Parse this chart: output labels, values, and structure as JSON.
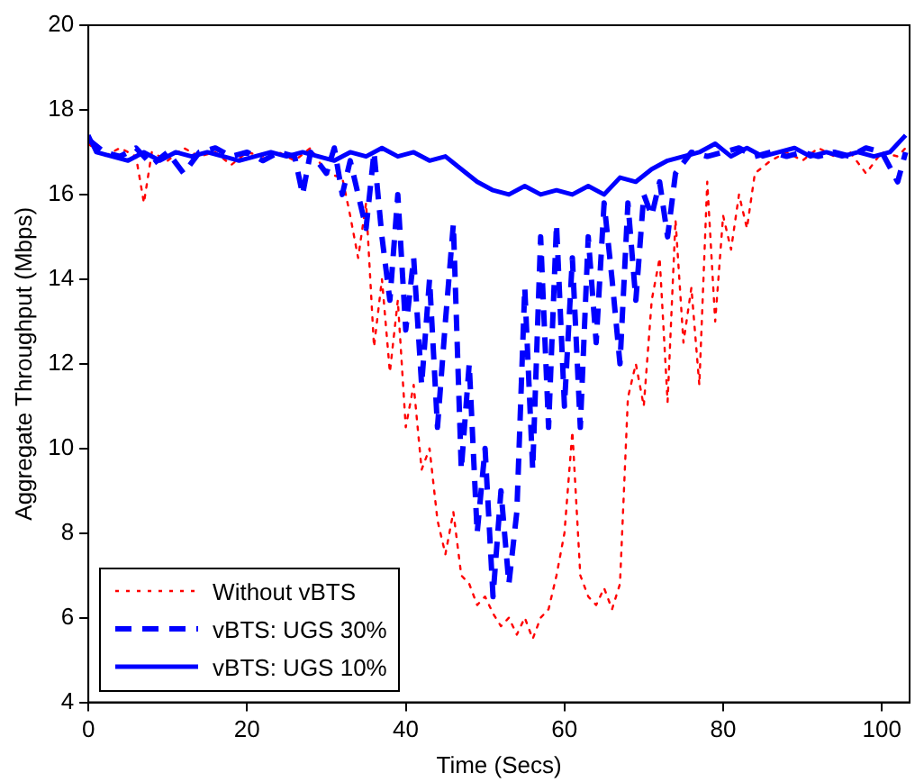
{
  "chart_data": {
    "type": "line",
    "xlabel": "Time (Secs)",
    "ylabel": "Aggregate Throughput (Mbps)",
    "xlim": [
      0,
      103.5
    ],
    "xticks": [
      0,
      20,
      40,
      60,
      80,
      100
    ],
    "ylim": [
      4,
      20
    ],
    "yticks": [
      4,
      6,
      8,
      10,
      12,
      14,
      16,
      18,
      20
    ],
    "grid": false,
    "legend": "bottom left",
    "marker": "none",
    "series": [
      {
        "name": "Without vBTS",
        "color": "#ff0000",
        "line_style": "dotted",
        "x": [
          0,
          2,
          4,
          6,
          7,
          8,
          10,
          12,
          14,
          16,
          18,
          20,
          22,
          24,
          26,
          28,
          30,
          32,
          33,
          34,
          35,
          36,
          37,
          38,
          39,
          40,
          41,
          42,
          43,
          44,
          45,
          46,
          47,
          48,
          49,
          50,
          51,
          52,
          53,
          54,
          55,
          56,
          57,
          58,
          59,
          60,
          61,
          62,
          63,
          64,
          65,
          66,
          67,
          68,
          69,
          70,
          71,
          72,
          73,
          74,
          75,
          76,
          77,
          78,
          79,
          80,
          81,
          82,
          83,
          84,
          86,
          88,
          90,
          92,
          94,
          96,
          98,
          100,
          102,
          103
        ],
        "values": [
          17.2,
          16.9,
          17.1,
          16.9,
          15.8,
          17.0,
          16.8,
          17.1,
          16.9,
          17.0,
          16.7,
          17.0,
          16.9,
          17.0,
          16.8,
          17.1,
          16.5,
          16.4,
          15.5,
          14.5,
          15.8,
          12.4,
          14.0,
          11.8,
          13.5,
          10.5,
          11.5,
          9.5,
          10.0,
          8.3,
          7.5,
          8.5,
          7.0,
          6.8,
          6.3,
          6.5,
          6.1,
          5.8,
          6.0,
          5.6,
          6.0,
          5.5,
          6.0,
          6.2,
          7.0,
          8.0,
          10.4,
          7.0,
          6.5,
          6.3,
          6.7,
          6.2,
          6.8,
          11.2,
          12.0,
          11.0,
          13.5,
          14.5,
          11.1,
          15.4,
          12.5,
          13.8,
          11.5,
          16.3,
          13.0,
          15.5,
          14.7,
          16.0,
          15.2,
          16.5,
          16.8,
          17.0,
          16.8,
          17.1,
          16.9,
          17.0,
          16.5,
          17.0,
          16.9,
          17.1
        ]
      },
      {
        "name": "vBTS: UGS 30%",
        "color": "#0000ff",
        "line_style": "dashed",
        "x": [
          0,
          2,
          4,
          6,
          8,
          10,
          12,
          14,
          16,
          18,
          20,
          22,
          24,
          26,
          27,
          28,
          30,
          31,
          32,
          33,
          35,
          36,
          37,
          38,
          39,
          40,
          41,
          42,
          43,
          44,
          45,
          46,
          47,
          48,
          49,
          50,
          51,
          52,
          53,
          54,
          55,
          56,
          57,
          58,
          59,
          60,
          61,
          62,
          63,
          64,
          65,
          66,
          67,
          68,
          69,
          70,
          71,
          72,
          73,
          74,
          76,
          78,
          80,
          82,
          84,
          86,
          88,
          90,
          92,
          94,
          96,
          98,
          100,
          102,
          103
        ],
        "values": [
          17.3,
          17.0,
          16.9,
          17.1,
          16.7,
          17.0,
          16.5,
          17.0,
          17.1,
          16.9,
          17.0,
          16.8,
          17.0,
          16.9,
          16.0,
          17.0,
          16.5,
          17.1,
          16.0,
          16.8,
          15.2,
          17.0,
          15.0,
          13.5,
          16.0,
          12.8,
          14.5,
          11.5,
          14.0,
          10.5,
          13.0,
          15.3,
          9.5,
          12.0,
          8.0,
          10.0,
          6.5,
          9.0,
          6.8,
          8.5,
          13.8,
          9.5,
          15.0,
          10.5,
          15.3,
          11.0,
          14.5,
          10.5,
          15.0,
          12.5,
          15.8,
          14.0,
          12.0,
          15.8,
          13.5,
          16.0,
          15.5,
          16.3,
          15.0,
          16.5,
          17.0,
          16.9,
          17.0,
          17.1,
          16.9,
          17.0,
          16.9,
          17.0,
          16.9,
          17.0,
          16.9,
          17.1,
          17.0,
          16.3,
          17.0
        ]
      },
      {
        "name": "vBTS: UGS 10%",
        "color": "#0000ff",
        "line_style": "solid",
        "x": [
          0,
          1,
          3,
          5,
          7,
          9,
          11,
          13,
          15,
          17,
          19,
          21,
          23,
          25,
          27,
          29,
          31,
          33,
          35,
          37,
          39,
          41,
          43,
          45,
          47,
          49,
          51,
          53,
          55,
          57,
          59,
          61,
          63,
          65,
          67,
          69,
          71,
          73,
          75,
          77,
          79,
          81,
          83,
          85,
          87,
          89,
          91,
          93,
          95,
          97,
          99,
          101,
          103
        ],
        "values": [
          17.4,
          17.0,
          16.9,
          16.8,
          17.0,
          16.8,
          17.0,
          16.9,
          17.0,
          16.9,
          16.8,
          16.9,
          17.0,
          16.9,
          17.0,
          16.9,
          16.8,
          17.0,
          16.9,
          17.1,
          16.9,
          17.0,
          16.8,
          16.9,
          16.6,
          16.3,
          16.1,
          16.0,
          16.2,
          16.0,
          16.1,
          16.0,
          16.2,
          16.0,
          16.4,
          16.3,
          16.6,
          16.8,
          16.9,
          17.0,
          17.2,
          16.9,
          17.1,
          16.9,
          17.0,
          17.1,
          16.9,
          17.0,
          16.9,
          17.0,
          16.9,
          17.0,
          17.4
        ]
      }
    ]
  }
}
